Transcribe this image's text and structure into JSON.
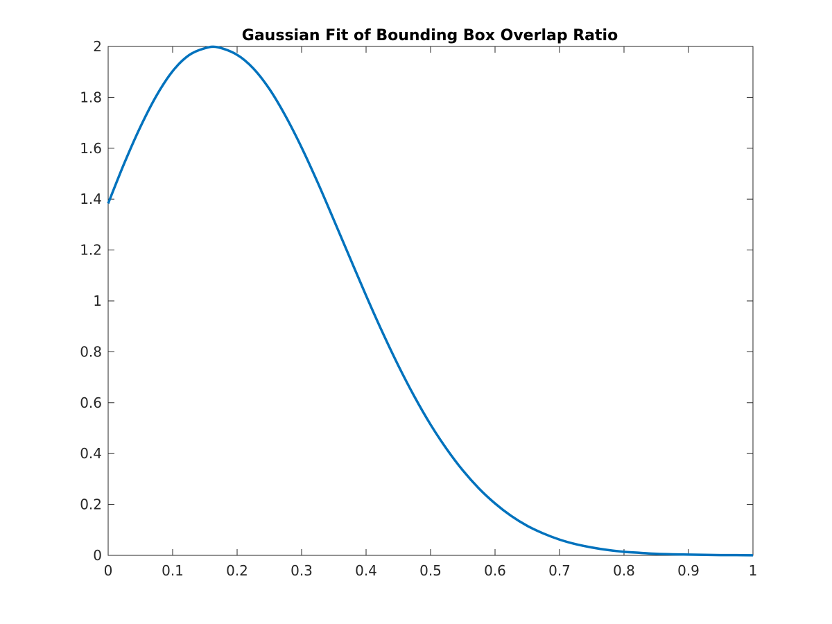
{
  "chart_data": {
    "type": "line",
    "title": "Gaussian Fit of Bounding Box Overlap Ratio",
    "xlabel": "",
    "ylabel": "",
    "xlim": [
      0,
      1
    ],
    "ylim": [
      0,
      2
    ],
    "x_ticks": [
      0,
      0.1,
      0.2,
      0.3,
      0.4,
      0.5,
      0.6,
      0.7,
      0.8,
      0.9,
      1
    ],
    "x_tick_labels": [
      "0",
      "0.1",
      "0.2",
      "0.3",
      "0.4",
      "0.5",
      "0.6",
      "0.7",
      "0.8",
      "0.9",
      "1"
    ],
    "y_ticks": [
      0,
      0.2,
      0.4,
      0.6,
      0.8,
      1,
      1.2,
      1.4,
      1.6,
      1.8,
      2
    ],
    "y_tick_labels": [
      "0",
      "0.2",
      "0.4",
      "0.6",
      "0.8",
      "1",
      "1.2",
      "1.4",
      "1.6",
      "1.8",
      "2"
    ],
    "grid": false,
    "legend": "none",
    "series": [
      {
        "color": "#0072BD",
        "x": [
          0,
          0.025,
          0.05,
          0.075,
          0.1,
          0.125,
          0.15,
          0.17,
          0.2,
          0.225,
          0.25,
          0.275,
          0.3,
          0.325,
          0.35,
          0.375,
          0.4,
          0.425,
          0.45,
          0.475,
          0.5,
          0.525,
          0.55,
          0.575,
          0.6,
          0.625,
          0.65,
          0.675,
          0.7,
          0.725,
          0.75,
          0.775,
          0.8,
          0.825,
          0.85,
          0.875,
          0.9,
          0.925,
          0.95,
          0.975,
          1
        ],
        "y": [
          1.383,
          1.541,
          1.684,
          1.807,
          1.903,
          1.965,
          1.993,
          1.997,
          1.967,
          1.914,
          1.833,
          1.727,
          1.603,
          1.465,
          1.318,
          1.169,
          1.021,
          0.879,
          0.746,
          0.624,
          0.514,
          0.418,
          0.334,
          0.263,
          0.204,
          0.155,
          0.116,
          0.086,
          0.062,
          0.044,
          0.031,
          0.021,
          0.014,
          0.01,
          0.006,
          0.004,
          0.003,
          0.002,
          0.001,
          0.001,
          0.0004
        ]
      }
    ]
  }
}
